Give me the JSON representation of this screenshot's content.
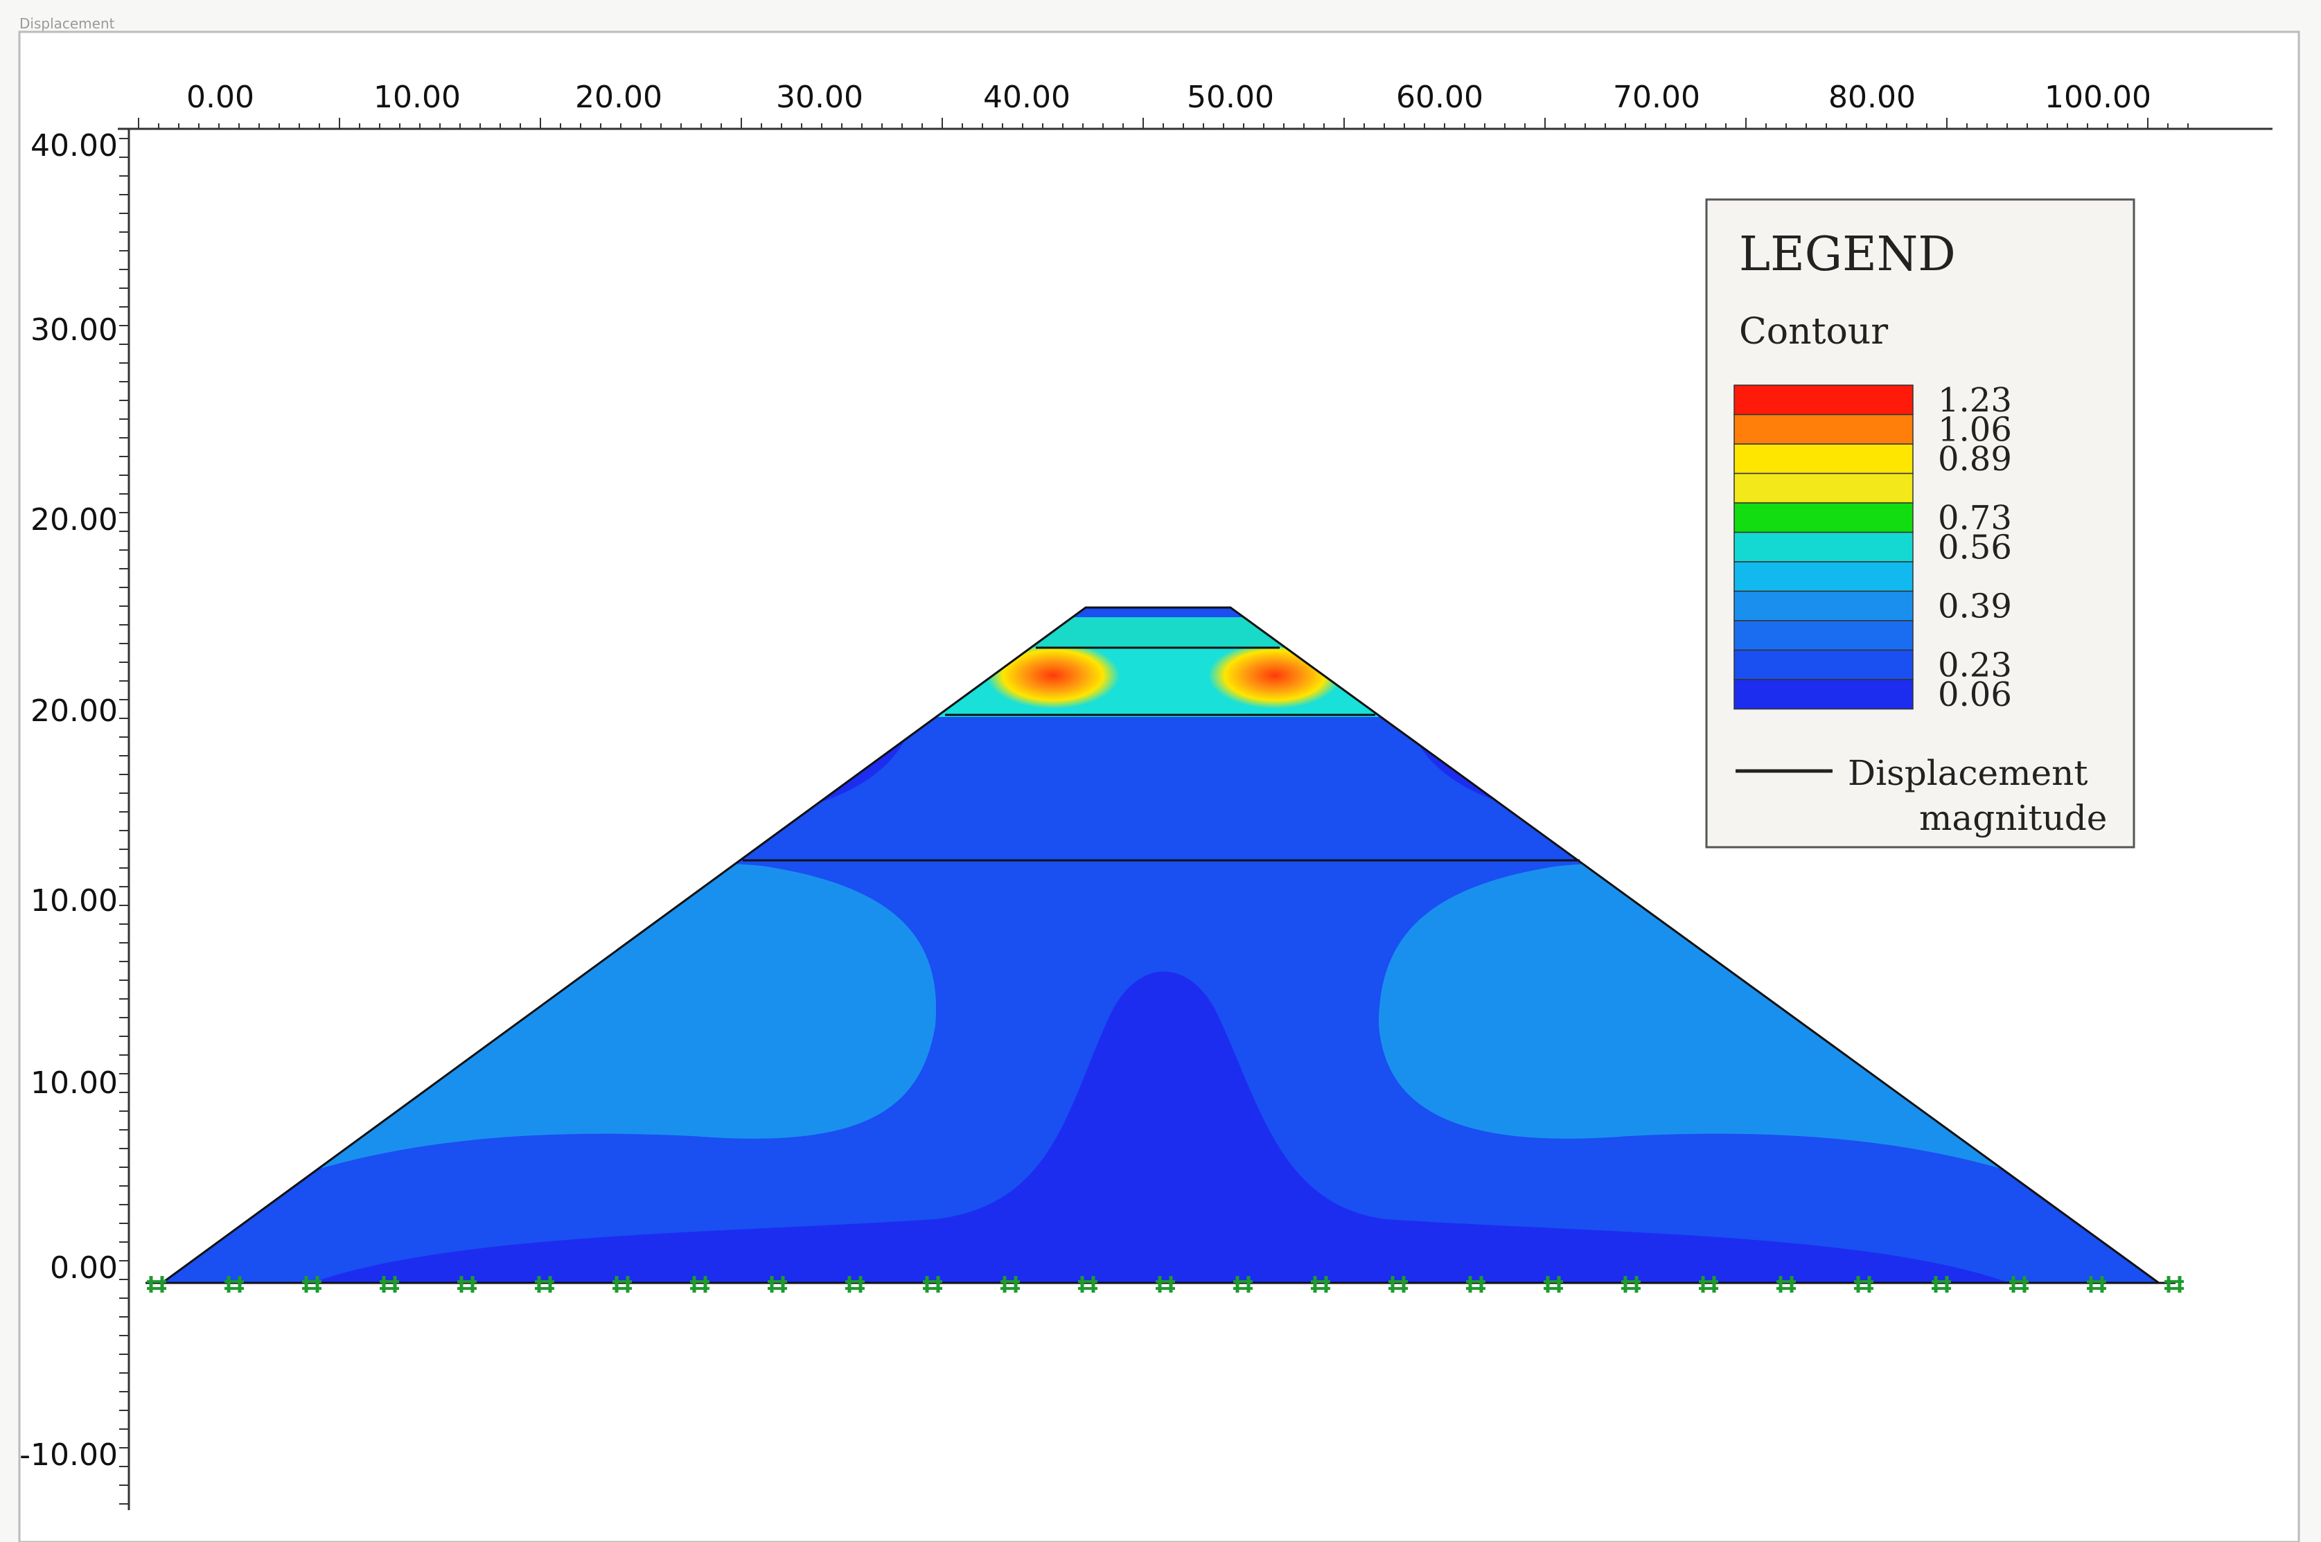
{
  "window": {
    "title": "Displacement"
  },
  "axes": {
    "x_ticks": [
      "0.00",
      "10.00",
      "20.00",
      "30.00",
      "40.00",
      "50.00",
      "60.00",
      "70.00",
      "80.00",
      "100.00"
    ],
    "y_ticks": [
      "40.00",
      "30.00",
      "20.00",
      "20.00",
      "10.00",
      "10.00",
      "0.00",
      "-10.00"
    ]
  },
  "legend": {
    "title": "LEGEND",
    "subtitle": "Contour",
    "levels": [
      {
        "value": "1.23",
        "color": "#ff1a0a"
      },
      {
        "value": "1.06",
        "color": "#ff7f0a"
      },
      {
        "value": "0.89",
        "color": "#ffe600"
      },
      {
        "value": "",
        "color": "#f2e81a"
      },
      {
        "value": "0.73",
        "color": "#11dd11"
      },
      {
        "value": "0.56",
        "color": "#14d9d2"
      },
      {
        "value": "",
        "color": "#12b9ee"
      },
      {
        "value": "0.39",
        "color": "#1a90ee"
      },
      {
        "value": "",
        "color": "#1a6df0"
      },
      {
        "value": "0.23",
        "color": "#1a4ff2"
      },
      {
        "value": "0.06",
        "color": "#1c2df0"
      }
    ],
    "line_label_1": "Displacement",
    "line_label_2": "magnitude"
  },
  "colors": {
    "deep": "#1c2df0",
    "mid": "#1a4ff2",
    "light": "#1a90ee",
    "fixity": "#1e9b2e"
  }
}
